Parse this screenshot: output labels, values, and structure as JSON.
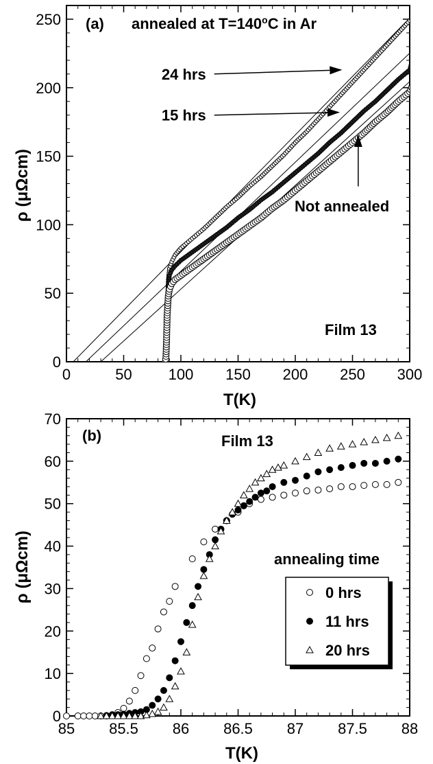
{
  "chart_data": [
    {
      "panel_label": "(a)",
      "type": "line",
      "title": "",
      "annotation_top": "annealed at T=140",
      "annotation_top_sup": "o",
      "annotation_top_end": "C in Ar",
      "film_label": "Film 13",
      "xlabel": "T(K)",
      "ylabel": "ρ (μΩcm)",
      "xlim": [
        0,
        300
      ],
      "ylim": [
        0,
        260
      ],
      "x_ticks": [
        0,
        50,
        100,
        150,
        200,
        250,
        300
      ],
      "y_ticks": [
        0,
        50,
        100,
        150,
        200,
        250
      ],
      "series": [
        {
          "name": "24 hrs",
          "marker": "dot-light",
          "points": [
            [
              86.5,
              0
            ],
            [
              87,
              6
            ],
            [
              87.5,
              20
            ],
            [
              88,
              40
            ],
            [
              89,
              60
            ],
            [
              90,
              68
            ],
            [
              92,
              73
            ],
            [
              95,
              78
            ],
            [
              100,
              83
            ],
            [
              110,
              90
            ],
            [
              120,
              97
            ],
            [
              130,
              105
            ],
            [
              140,
              113
            ],
            [
              150,
              120
            ],
            [
              160,
              128
            ],
            [
              170,
              135
            ],
            [
              180,
              143
            ],
            [
              190,
              151
            ],
            [
              200,
              160
            ],
            [
              210,
              168
            ],
            [
              220,
              177
            ],
            [
              230,
              186
            ],
            [
              240,
              195
            ],
            [
              250,
              204
            ],
            [
              260,
              213
            ],
            [
              270,
              222
            ],
            [
              280,
              231
            ],
            [
              290,
              240
            ],
            [
              300,
              249
            ],
            [
              305,
              254
            ]
          ]
        },
        {
          "name": "15 hrs",
          "marker": "dot-dark",
          "points": [
            [
              86.5,
              0
            ],
            [
              87,
              5
            ],
            [
              87.5,
              18
            ],
            [
              88,
              38
            ],
            [
              89,
              55
            ],
            [
              90,
              63
            ],
            [
              92,
              67
            ],
            [
              95,
              70
            ],
            [
              100,
              74
            ],
            [
              110,
              80
            ],
            [
              120,
              86
            ],
            [
              130,
              92
            ],
            [
              140,
              98
            ],
            [
              150,
              105
            ],
            [
              160,
              111
            ],
            [
              170,
              118
            ],
            [
              180,
              124
            ],
            [
              190,
              131
            ],
            [
              200,
              138
            ],
            [
              210,
              145
            ],
            [
              220,
              152
            ],
            [
              230,
              160
            ],
            [
              240,
              167
            ],
            [
              250,
              175
            ],
            [
              260,
              183
            ],
            [
              270,
              190
            ],
            [
              280,
              198
            ],
            [
              290,
              206
            ],
            [
              300,
              213
            ],
            [
              305,
              228
            ]
          ]
        },
        {
          "name": "Not annealed",
          "marker": "circle-open",
          "points": [
            [
              86.5,
              0
            ],
            [
              87,
              4
            ],
            [
              87.5,
              16
            ],
            [
              88,
              34
            ],
            [
              89,
              48
            ],
            [
              90,
              53
            ],
            [
              92,
              57
            ],
            [
              95,
              60
            ],
            [
              100,
              63
            ],
            [
              110,
              69
            ],
            [
              120,
              75
            ],
            [
              130,
              81
            ],
            [
              140,
              87
            ],
            [
              150,
              93
            ],
            [
              160,
              99
            ],
            [
              170,
              105
            ],
            [
              180,
              112
            ],
            [
              190,
              118
            ],
            [
              200,
              125
            ],
            [
              210,
              132
            ],
            [
              220,
              139
            ],
            [
              230,
              146
            ],
            [
              240,
              153
            ],
            [
              250,
              160
            ],
            [
              260,
              167
            ],
            [
              270,
              175
            ],
            [
              280,
              182
            ],
            [
              290,
              190
            ],
            [
              300,
              197
            ],
            [
              305,
              207
            ]
          ]
        }
      ],
      "fit_lines": [
        {
          "x": [
            6,
            306
          ],
          "y": [
            0,
            256
          ]
        },
        {
          "x": [
            17,
            306
          ],
          "y": [
            0,
            230
          ]
        },
        {
          "x": [
            30,
            306
          ],
          "y": [
            0,
            209
          ]
        }
      ],
      "labels": [
        {
          "text": "24 hrs",
          "x": 122,
          "y": 210,
          "arrow_to": [
            240,
            213
          ]
        },
        {
          "text": "15 hrs",
          "x": 122,
          "y": 180,
          "arrow_to": [
            238,
            182
          ]
        },
        {
          "text": "Not annealed",
          "x": 200,
          "y": 113,
          "arrow_from": [
            255,
            128
          ],
          "arrow_to": [
            255,
            165
          ]
        }
      ]
    },
    {
      "panel_label": "(b)",
      "type": "scatter",
      "title": "",
      "film_label": "Film 13",
      "xlabel": "T(K)",
      "ylabel": "ρ (μΩcm)",
      "xlim": [
        85,
        88
      ],
      "ylim": [
        0,
        70
      ],
      "x_ticks": [
        85,
        85.5,
        86,
        86.5,
        87,
        87.5,
        88
      ],
      "x_tick_labels": [
        "85",
        "85.5",
        "86",
        "86.5",
        "87",
        "87.5",
        "88"
      ],
      "y_ticks": [
        0,
        10,
        20,
        30,
        40,
        50,
        60,
        70
      ],
      "legend_title": "annealing time",
      "legend_position": "middle-right",
      "series": [
        {
          "name": "0   hrs",
          "marker": "circle-open",
          "points": [
            [
              85.0,
              0
            ],
            [
              85.1,
              0
            ],
            [
              85.15,
              0
            ],
            [
              85.2,
              0
            ],
            [
              85.25,
              0
            ],
            [
              85.3,
              0
            ],
            [
              85.35,
              0.1
            ],
            [
              85.4,
              0.3
            ],
            [
              85.45,
              0.8
            ],
            [
              85.5,
              1.8
            ],
            [
              85.55,
              3.5
            ],
            [
              85.6,
              6
            ],
            [
              85.65,
              9.5
            ],
            [
              85.7,
              13.5
            ],
            [
              85.75,
              16
            ],
            [
              85.8,
              20.5
            ],
            [
              85.85,
              24.5
            ],
            [
              85.9,
              27
            ],
            [
              85.95,
              30.5
            ],
            [
              86.1,
              37
            ],
            [
              86.2,
              41
            ],
            [
              86.3,
              44
            ],
            [
              86.4,
              46
            ],
            [
              86.5,
              48
            ],
            [
              86.55,
              49.5
            ],
            [
              86.6,
              50
            ],
            [
              86.7,
              51
            ],
            [
              86.8,
              51.5
            ],
            [
              86.9,
              52
            ],
            [
              87.0,
              52.5
            ],
            [
              87.1,
              53
            ],
            [
              87.2,
              53.2
            ],
            [
              87.3,
              53.5
            ],
            [
              87.4,
              54
            ],
            [
              87.5,
              54
            ],
            [
              87.6,
              54.3
            ],
            [
              87.7,
              54.5
            ],
            [
              87.8,
              54.5
            ],
            [
              87.9,
              55
            ]
          ]
        },
        {
          "name": "11 hrs",
          "marker": "circle-filled",
          "points": [
            [
              85.35,
              0
            ],
            [
              85.4,
              0.2
            ],
            [
              85.45,
              0.3
            ],
            [
              85.5,
              0.4
            ],
            [
              85.55,
              0.6
            ],
            [
              85.6,
              0.8
            ],
            [
              85.65,
              1
            ],
            [
              85.7,
              1.5
            ],
            [
              85.75,
              2.5
            ],
            [
              85.8,
              4
            ],
            [
              85.85,
              6
            ],
            [
              85.9,
              9
            ],
            [
              85.95,
              13
            ],
            [
              86.0,
              17.5
            ],
            [
              86.05,
              22
            ],
            [
              86.1,
              26
            ],
            [
              86.15,
              30.5
            ],
            [
              86.2,
              34.5
            ],
            [
              86.25,
              38
            ],
            [
              86.3,
              41.5
            ],
            [
              86.35,
              44
            ],
            [
              86.4,
              46
            ],
            [
              86.45,
              47.5
            ],
            [
              86.5,
              48.5
            ],
            [
              86.55,
              49.5
            ],
            [
              86.6,
              50.5
            ],
            [
              86.65,
              51.5
            ],
            [
              86.7,
              52.5
            ],
            [
              86.75,
              53
            ],
            [
              86.8,
              54
            ],
            [
              86.9,
              55
            ],
            [
              87.0,
              55.5
            ],
            [
              87.1,
              56.5
            ],
            [
              87.2,
              57.5
            ],
            [
              87.3,
              58
            ],
            [
              87.4,
              58.5
            ],
            [
              87.5,
              59
            ],
            [
              87.6,
              59.5
            ],
            [
              87.7,
              59.5
            ],
            [
              87.8,
              60
            ],
            [
              87.9,
              60.5
            ]
          ]
        },
        {
          "name": "20 hrs",
          "marker": "triangle-open",
          "points": [
            [
              85.3,
              0
            ],
            [
              85.35,
              0
            ],
            [
              85.4,
              0
            ],
            [
              85.45,
              0
            ],
            [
              85.5,
              0
            ],
            [
              85.55,
              0
            ],
            [
              85.6,
              0
            ],
            [
              85.65,
              0
            ],
            [
              85.7,
              0.2
            ],
            [
              85.75,
              0.5
            ],
            [
              85.8,
              1
            ],
            [
              85.85,
              2
            ],
            [
              85.9,
              4
            ],
            [
              85.95,
              7
            ],
            [
              86.0,
              10.5
            ],
            [
              86.05,
              15
            ],
            [
              86.1,
              21.5
            ],
            [
              86.15,
              28
            ],
            [
              86.2,
              33
            ],
            [
              86.25,
              37
            ],
            [
              86.3,
              40
            ],
            [
              86.35,
              43.5
            ],
            [
              86.4,
              46
            ],
            [
              86.45,
              48
            ],
            [
              86.5,
              50
            ],
            [
              86.55,
              52
            ],
            [
              86.6,
              53.5
            ],
            [
              86.65,
              55
            ],
            [
              86.7,
              56
            ],
            [
              86.75,
              57
            ],
            [
              86.8,
              58
            ],
            [
              86.85,
              58.5
            ],
            [
              86.9,
              59
            ],
            [
              87.0,
              60
            ],
            [
              87.1,
              61
            ],
            [
              87.2,
              62
            ],
            [
              87.3,
              63
            ],
            [
              87.4,
              63.5
            ],
            [
              87.5,
              64
            ],
            [
              87.6,
              64.5
            ],
            [
              87.7,
              65
            ],
            [
              87.8,
              65.5
            ],
            [
              87.9,
              66
            ]
          ]
        }
      ]
    }
  ]
}
